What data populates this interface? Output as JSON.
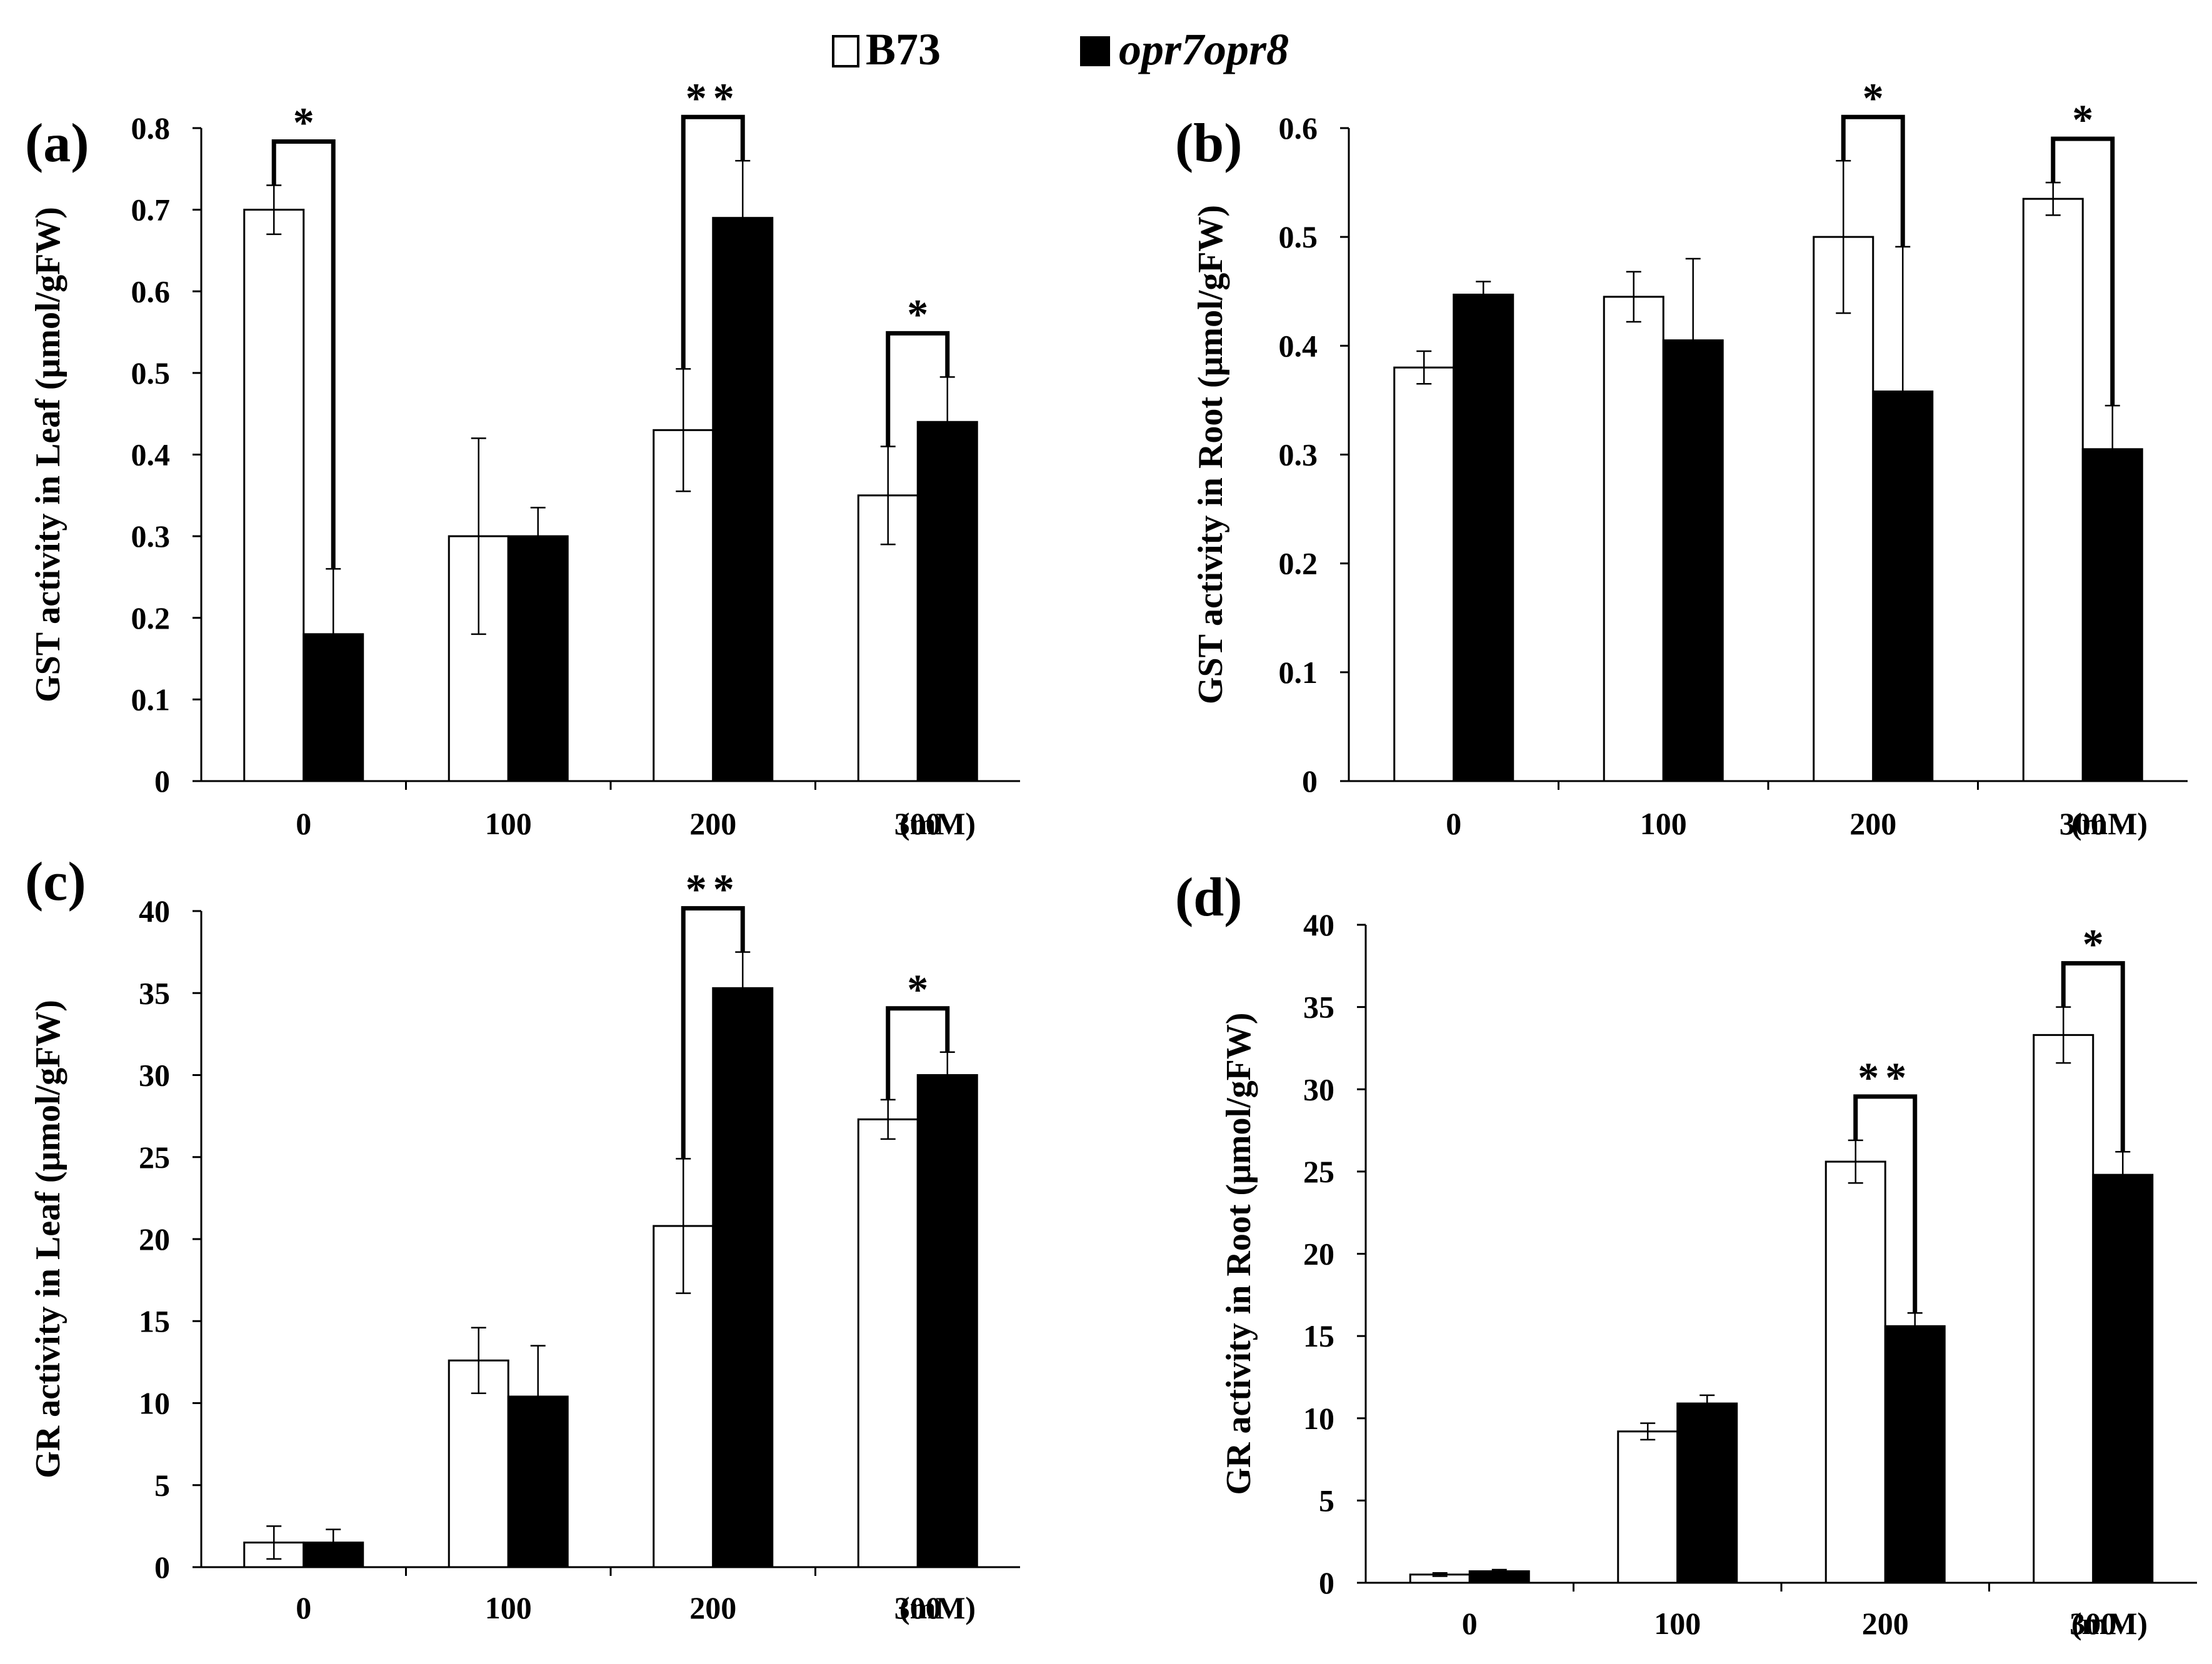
{
  "legend": {
    "series": [
      {
        "name": "B73",
        "color": "#ffffff"
      },
      {
        "name": "opr7opr8",
        "color": "#000000"
      }
    ]
  },
  "chart_data": [
    {
      "type": "bar",
      "panel": "(a)",
      "ylabel": "GST activity in Leaf (μmol/gFW)",
      "categories": [
        "0",
        "100",
        "200",
        "300"
      ],
      "unit_label": "(mM)",
      "ylim": [
        0,
        0.8
      ],
      "yticks": [
        "0",
        "0.1",
        "0.2",
        "0.3",
        "0.4",
        "0.5",
        "0.6",
        "0.7",
        "0.8"
      ],
      "series": [
        {
          "name": "B73",
          "values": [
            0.7,
            0.3,
            0.43,
            0.35
          ],
          "errors": [
            0.03,
            0.12,
            0.075,
            0.06
          ]
        },
        {
          "name": "opr7opr8",
          "values": [
            0.18,
            0.3,
            0.69,
            0.44
          ],
          "errors": [
            0.08,
            0.035,
            0.07,
            0.055
          ]
        }
      ],
      "significance": [
        {
          "category": 0,
          "label": "*"
        },
        {
          "category": 2,
          "label": "**"
        },
        {
          "category": 3,
          "label": "*"
        }
      ]
    },
    {
      "type": "bar",
      "panel": "(b)",
      "ylabel": "GST activity in Root (μmol/gFW)",
      "categories": [
        "0",
        "100",
        "200",
        "300"
      ],
      "unit_label": "(mM)",
      "ylim": [
        0,
        0.6
      ],
      "yticks": [
        "0",
        "0.1",
        "0.2",
        "0.3",
        "0.4",
        "0.5",
        "0.6"
      ],
      "series": [
        {
          "name": "B73",
          "values": [
            0.38,
            0.445,
            0.5,
            0.535
          ],
          "errors": [
            0.015,
            0.023,
            0.07,
            0.015
          ]
        },
        {
          "name": "opr7opr8",
          "values": [
            0.447,
            0.405,
            0.358,
            0.305
          ],
          "errors": [
            0.012,
            0.075,
            0.133,
            0.04
          ]
        }
      ],
      "significance": [
        {
          "category": 2,
          "label": "*"
        },
        {
          "category": 3,
          "label": "*"
        }
      ]
    },
    {
      "type": "bar",
      "panel": "(c)",
      "ylabel": "GR activity in Leaf (μmol/gFW)",
      "categories": [
        "0",
        "100",
        "200",
        "300"
      ],
      "unit_label": "(mM)",
      "ylim": [
        0,
        40
      ],
      "yticks": [
        "0",
        "5",
        "10",
        "15",
        "20",
        "25",
        "30",
        "35",
        "40"
      ],
      "series": [
        {
          "name": "B73",
          "values": [
            1.5,
            12.6,
            20.8,
            27.3
          ],
          "errors": [
            1.0,
            2.0,
            4.1,
            1.2
          ]
        },
        {
          "name": "opr7opr8",
          "values": [
            1.5,
            10.4,
            35.3,
            30.0
          ],
          "errors": [
            0.8,
            3.1,
            2.2,
            1.4
          ]
        }
      ],
      "significance": [
        {
          "category": 2,
          "label": "**"
        },
        {
          "category": 3,
          "label": "*"
        }
      ]
    },
    {
      "type": "bar",
      "panel": "(d)",
      "ylabel": "GR activity in Root (μmol/gFW)",
      "categories": [
        "0",
        "100",
        "200",
        "300"
      ],
      "unit_label": "(mM)",
      "ylim": [
        0,
        40
      ],
      "yticks": [
        "0",
        "5",
        "10",
        "15",
        "20",
        "25",
        "30",
        "35",
        "40"
      ],
      "series": [
        {
          "name": "B73",
          "values": [
            0.5,
            9.2,
            25.6,
            33.3
          ],
          "errors": [
            0.1,
            0.5,
            1.3,
            1.7
          ]
        },
        {
          "name": "opr7opr8",
          "values": [
            0.7,
            10.9,
            15.6,
            24.8
          ],
          "errors": [
            0.1,
            0.5,
            0.8,
            1.4
          ]
        }
      ],
      "significance": [
        {
          "category": 2,
          "label": "**"
        },
        {
          "category": 3,
          "label": "*"
        }
      ]
    }
  ]
}
